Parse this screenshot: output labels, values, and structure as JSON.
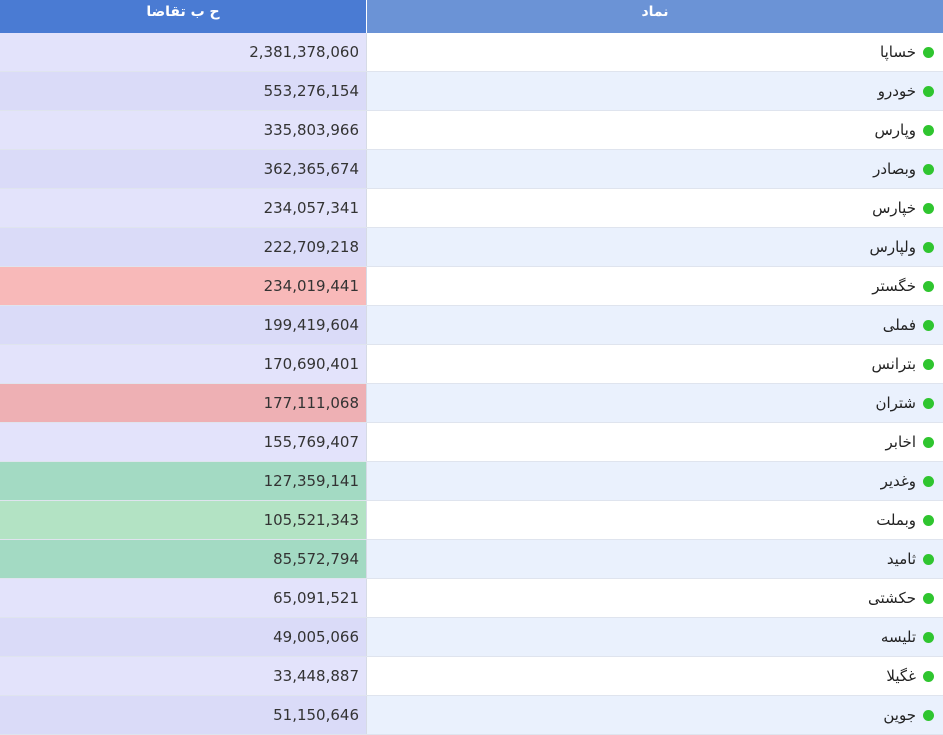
{
  "columns": {
    "demand": "ح ب تقاضا",
    "symbol": "نماد"
  },
  "colors": {
    "header_demand": "#4a7bd3",
    "header_symbol": "#6b93d6",
    "status_dot": "#2fc52f",
    "demand_default_a": "#e3e3fb",
    "demand_default_b": "#dadbf8",
    "demand_red_light": "#f8b9b9",
    "demand_red": "#eeb0b4",
    "demand_green": "#a3dac3",
    "demand_green_light": "#b3e3c4",
    "symbol_white": "#ffffff",
    "symbol_blue": "#eaf1fd"
  },
  "rows": [
    {
      "symbol": "خساپا",
      "demand": "2,381,378,060",
      "tone": "a"
    },
    {
      "symbol": "خودرو",
      "demand": "553,276,154",
      "tone": "b"
    },
    {
      "symbol": "وپارس",
      "demand": "335,803,966",
      "tone": "a"
    },
    {
      "symbol": "وبصادر",
      "demand": "362,365,674",
      "tone": "b"
    },
    {
      "symbol": "خپارس",
      "demand": "234,057,341",
      "tone": "a"
    },
    {
      "symbol": "ولپارس",
      "demand": "222,709,218",
      "tone": "b"
    },
    {
      "symbol": "خگستر",
      "demand": "234,019,441",
      "tone": "red_light"
    },
    {
      "symbol": "فملی",
      "demand": "199,419,604",
      "tone": "b"
    },
    {
      "symbol": "بترانس",
      "demand": "170,690,401",
      "tone": "a"
    },
    {
      "symbol": "شتران",
      "demand": "177,111,068",
      "tone": "red"
    },
    {
      "symbol": "اخابر",
      "demand": "155,769,407",
      "tone": "a"
    },
    {
      "symbol": "وغدیر",
      "demand": "127,359,141",
      "tone": "green"
    },
    {
      "symbol": "وبملت",
      "demand": "105,521,343",
      "tone": "green_light"
    },
    {
      "symbol": "ثامید",
      "demand": "85,572,794",
      "tone": "green"
    },
    {
      "symbol": "حکشتی",
      "demand": "65,091,521",
      "tone": "a"
    },
    {
      "symbol": "تلیسه",
      "demand": "49,005,066",
      "tone": "b"
    },
    {
      "symbol": "غگیلا",
      "demand": "33,448,887",
      "tone": "a"
    },
    {
      "symbol": "جوین",
      "demand": "51,150,646",
      "tone": "b"
    }
  ]
}
